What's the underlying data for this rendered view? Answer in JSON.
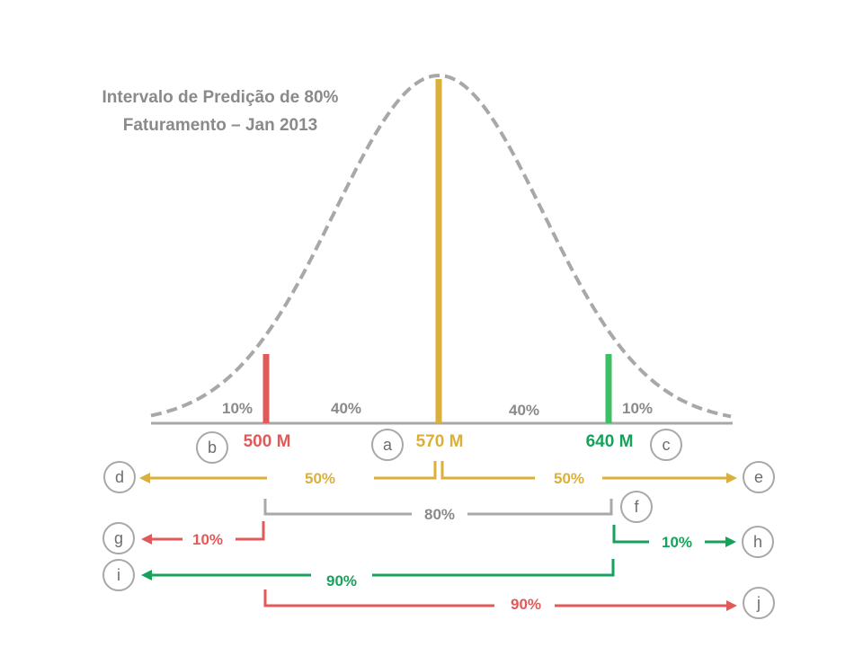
{
  "title": {
    "line1": "Intervalo de Predição de 80%",
    "line2": "Faturamento – Jan 2013"
  },
  "colors": {
    "red": "#e05a5a",
    "gold": "#dbb03a",
    "green": "#17a25c",
    "gray": "#a8a8a8",
    "node_text": "#6e6e6e"
  },
  "markers": {
    "low": {
      "value": "500 M",
      "color": "red"
    },
    "mid": {
      "value": "570 M",
      "color": "gold"
    },
    "high": {
      "value": "640 M",
      "color": "green"
    }
  },
  "area_labels": {
    "left_tail": "10%",
    "left_inner": "40%",
    "right_inner": "40%",
    "right_tail": "10%"
  },
  "nodes": {
    "a": "a",
    "b": "b",
    "c": "c",
    "d": "d",
    "e": "e",
    "f": "f",
    "g": "g",
    "h": "h",
    "i": "i",
    "j": "j"
  },
  "arrows": {
    "d_label": "50%",
    "e_label": "50%",
    "f_label": "80%",
    "g_label": "10%",
    "h_label": "10%",
    "i_label": "90%",
    "j_label": "90%"
  }
}
